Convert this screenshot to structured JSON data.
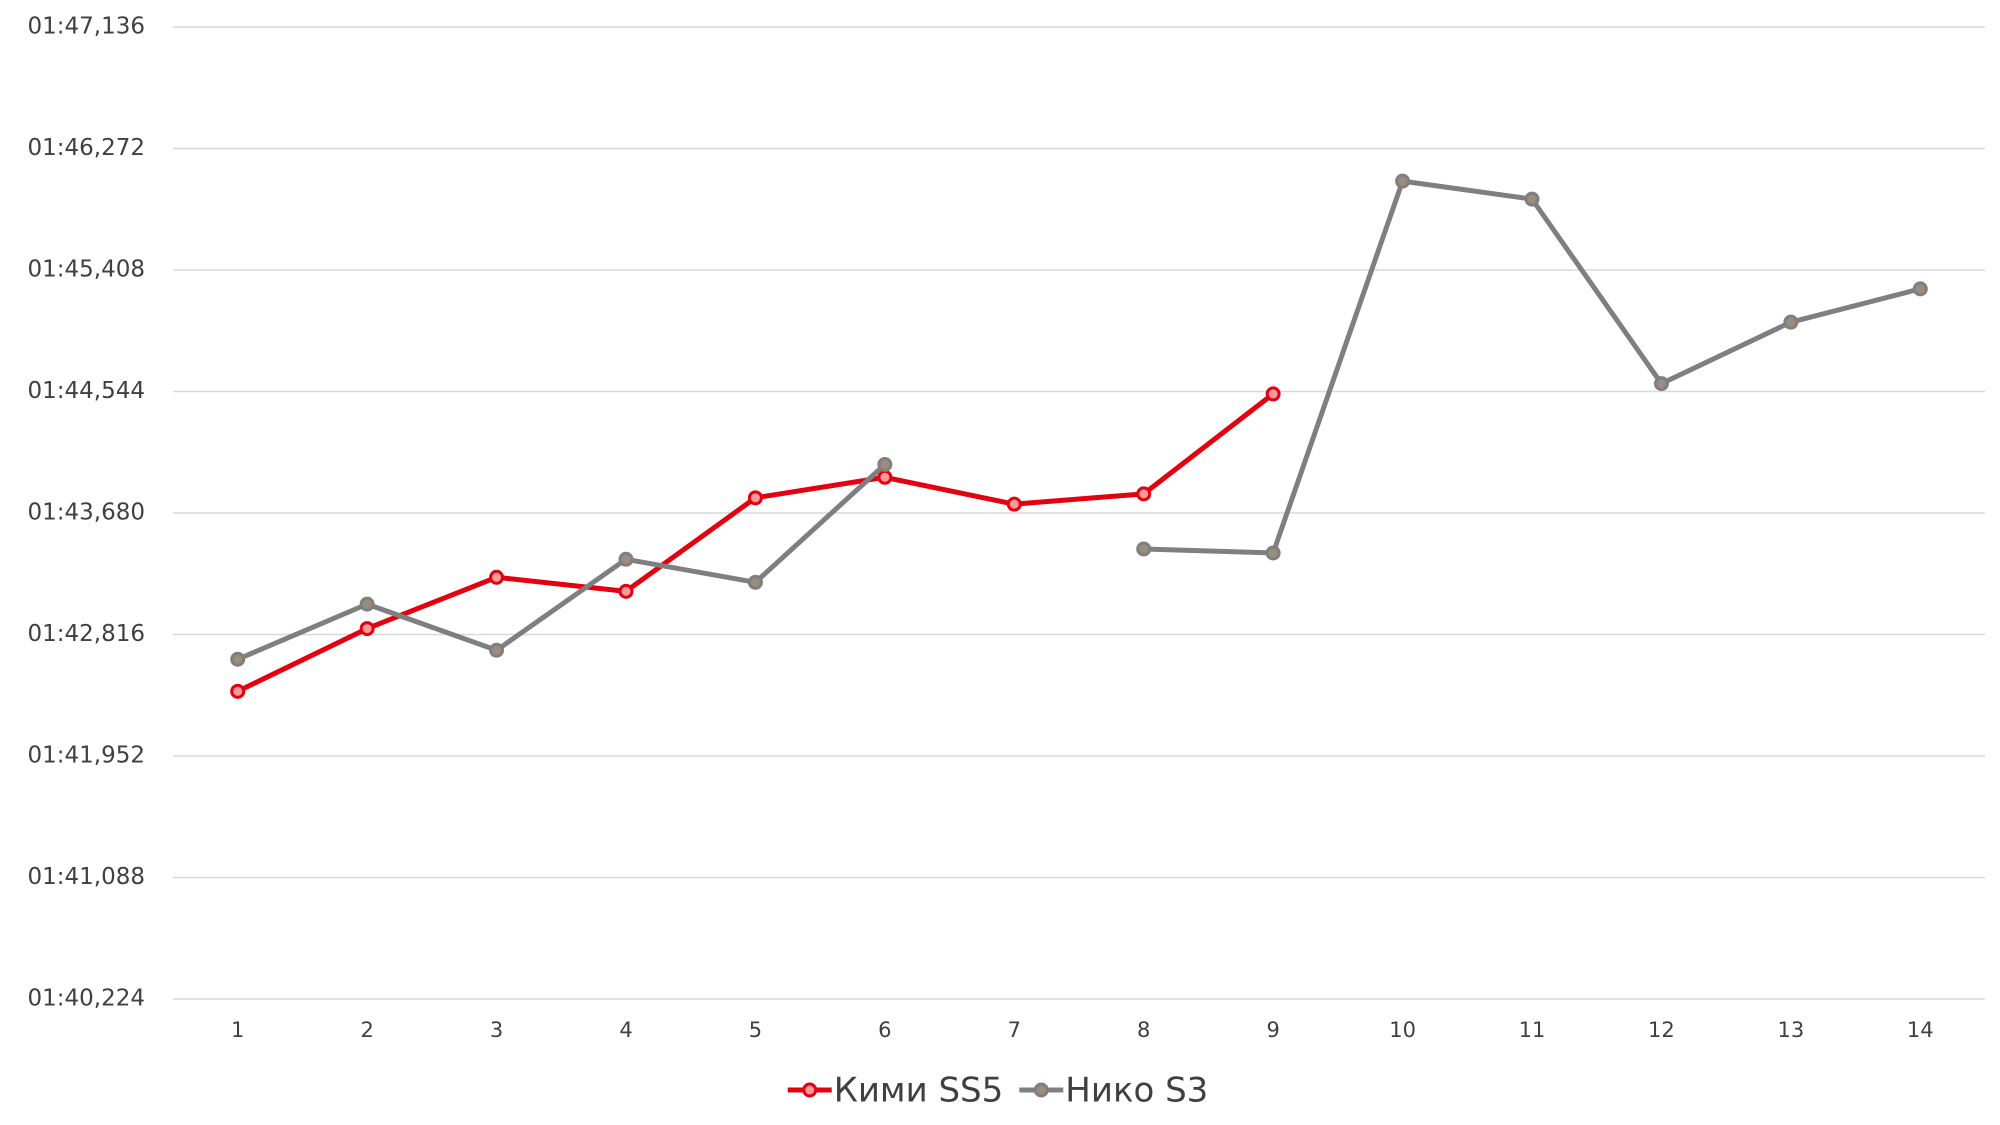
{
  "chart_data": {
    "type": "line",
    "categories": [
      "1",
      "2",
      "3",
      "4",
      "5",
      "6",
      "7",
      "8",
      "9",
      "10",
      "11",
      "12",
      "13",
      "14"
    ],
    "series": [
      {
        "name": "Кими SS5",
        "color": "#e3000f",
        "values": [
          102.412,
          102.858,
          103.223,
          103.123,
          103.788,
          103.934,
          103.743,
          103.816,
          104.527,
          null,
          null,
          null,
          null,
          null
        ]
      },
      {
        "name": "Нико S3",
        "color": "#7f7f7f",
        "values": [
          102.64,
          103.032,
          102.704,
          103.351,
          103.187,
          104.025,
          null,
          103.424,
          103.396,
          106.04,
          105.912,
          104.6,
          105.037,
          105.274
        ]
      }
    ],
    "ylim": [
      100.224,
      107.136
    ],
    "yticks": [
      {
        "value": 100.224,
        "label": "01:40,224"
      },
      {
        "value": 101.088,
        "label": "01:41,088"
      },
      {
        "value": 101.952,
        "label": "01:41,952"
      },
      {
        "value": 102.816,
        "label": "01:42,816"
      },
      {
        "value": 103.68,
        "label": "01:43,680"
      },
      {
        "value": 104.544,
        "label": "01:44,544"
      },
      {
        "value": 105.408,
        "label": "01:45,408"
      },
      {
        "value": 106.272,
        "label": "01:46,272"
      },
      {
        "value": 107.136,
        "label": "01:47,136"
      }
    ],
    "grid": true,
    "legend": "bottom"
  }
}
